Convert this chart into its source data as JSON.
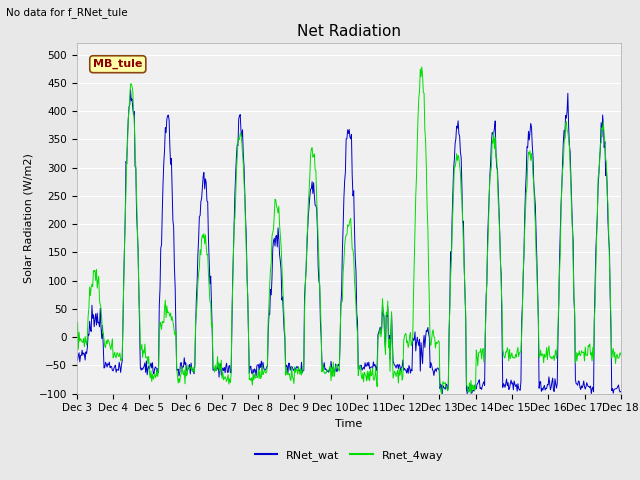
{
  "title": "Net Radiation",
  "ylabel": "Solar Radiation (W/m2)",
  "xlabel": "Time",
  "ylim": [
    -100,
    520
  ],
  "annotation_text": "No data for f_RNet_tule",
  "legend_box_label": "MB_tule",
  "line1_label": "RNet_wat",
  "line2_label": "Rnet_4way",
  "line1_color": "#0000cc",
  "line2_color": "#00dd00",
  "fig_bg_color": "#e8e8e8",
  "plot_bg_color": "#f0f0f0",
  "xtick_labels": [
    "Dec 3",
    "Dec 4",
    "Dec 5",
    "Dec 6",
    "Dec 7",
    "Dec 8",
    "Dec 9",
    "Dec 10",
    "Dec 11",
    "Dec 12",
    "Dec 13",
    "Dec 14",
    "Dec 15",
    "Dec 16",
    "Dec 17",
    "Dec 18"
  ],
  "ytick_values": [
    -100,
    -50,
    0,
    50,
    100,
    150,
    200,
    250,
    300,
    350,
    400,
    450,
    500
  ],
  "title_fontsize": 11,
  "label_fontsize": 8,
  "tick_fontsize": 7.5,
  "legend_fontsize": 8
}
